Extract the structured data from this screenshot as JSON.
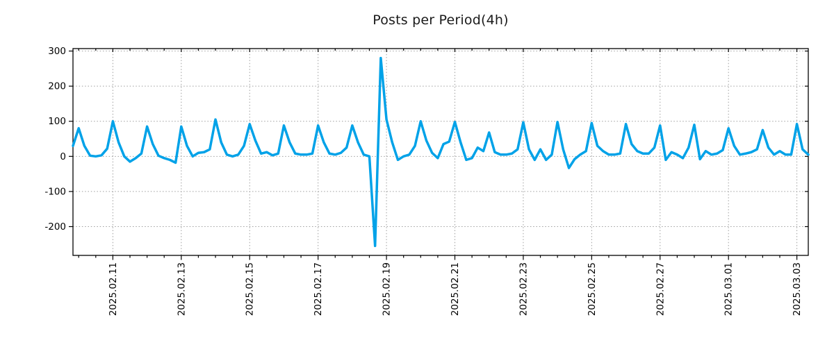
{
  "page": {
    "background": "#ffffff"
  },
  "chart_data": {
    "type": "line",
    "title": "Posts per Period(4h)",
    "xlabel": "",
    "ylabel": "",
    "legend": "none",
    "grid": "dotted",
    "line_color": "#00A2E8",
    "axis_color": "#000000",
    "grid_color": "#9e9e9e",
    "tick_label_color": "#000000",
    "ylim": [
      -282,
      307
    ],
    "y_ticks": [
      300,
      200,
      100,
      0,
      -100,
      -200
    ],
    "x_start": "2025-02-09 20:00",
    "x_step_hours": 4,
    "x_total_hours": 516,
    "x_minor_tick_every_hours": 12,
    "x_ticks": [
      {
        "hour": 28,
        "label": "2025.02.11"
      },
      {
        "hour": 76,
        "label": "2025.02.13"
      },
      {
        "hour": 124,
        "label": "2025.02.15"
      },
      {
        "hour": 172,
        "label": "2025.02.17"
      },
      {
        "hour": 220,
        "label": "2025.02.19"
      },
      {
        "hour": 268,
        "label": "2025.02.21"
      },
      {
        "hour": 316,
        "label": "2025.02.23"
      },
      {
        "hour": 364,
        "label": "2025.02.25"
      },
      {
        "hour": 412,
        "label": "2025.02.27"
      },
      {
        "hour": 460,
        "label": "2025.03.01"
      },
      {
        "hour": 508,
        "label": "2025.03.03"
      }
    ],
    "values": [
      30,
      80,
      30,
      2,
      0,
      3,
      22,
      100,
      40,
      0,
      -15,
      -5,
      8,
      85,
      35,
      2,
      -5,
      -10,
      -18,
      85,
      30,
      0,
      10,
      12,
      20,
      105,
      40,
      5,
      0,
      5,
      30,
      92,
      45,
      8,
      12,
      3,
      8,
      88,
      40,
      8,
      5,
      5,
      8,
      88,
      40,
      8,
      5,
      10,
      25,
      88,
      40,
      5,
      0,
      -255,
      280,
      105,
      40,
      -10,
      0,
      5,
      30,
      100,
      45,
      10,
      -5,
      35,
      42,
      98,
      40,
      -10,
      -5,
      25,
      15,
      68,
      12,
      5,
      5,
      8,
      20,
      97,
      20,
      -10,
      20,
      -10,
      5,
      98,
      20,
      -33,
      -8,
      5,
      15,
      95,
      30,
      15,
      5,
      5,
      8,
      92,
      35,
      15,
      8,
      8,
      25,
      88,
      -10,
      12,
      5,
      -5,
      25,
      90,
      -8,
      15,
      5,
      8,
      18,
      80,
      30,
      5,
      8,
      12,
      20,
      75,
      25,
      5,
      15,
      5,
      5,
      92,
      20,
      5
    ]
  }
}
